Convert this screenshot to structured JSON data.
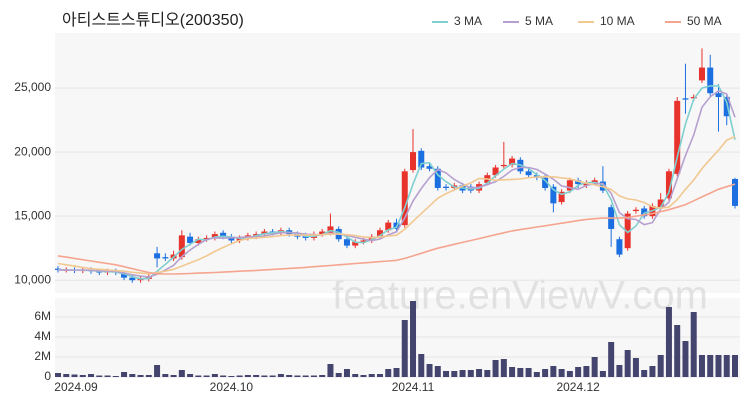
{
  "chart_data": {
    "type": "candlestick",
    "title": "아티스트스튜디오(200350)",
    "watermark": "feature.enViewV.com",
    "categories": [
      "2024.09",
      null,
      null,
      null,
      null,
      null,
      null,
      null,
      null,
      null,
      null,
      null,
      null,
      null,
      null,
      null,
      null,
      null,
      null,
      null,
      null,
      "2024.10",
      null,
      null,
      null,
      null,
      null,
      null,
      null,
      null,
      null,
      null,
      null,
      null,
      null,
      null,
      null,
      null,
      null,
      null,
      null,
      null,
      null,
      "2024.11",
      null,
      null,
      null,
      null,
      null,
      null,
      null,
      null,
      null,
      null,
      null,
      null,
      null,
      null,
      null,
      null,
      null,
      null,
      null,
      "2024.12",
      null,
      null,
      null,
      null,
      null,
      null,
      null,
      null,
      null,
      null,
      null,
      null,
      null,
      null,
      null,
      null,
      null,
      null,
      null
    ],
    "open": [
      10900,
      10800,
      10800,
      10750,
      10800,
      10700,
      10600,
      10700,
      10500,
      10200,
      10000,
      10100,
      12100,
      11800,
      11700,
      11800,
      13400,
      12900,
      13200,
      13300,
      13700,
      13400,
      13100,
      13300,
      13400,
      13600,
      13800,
      13700,
      13900,
      13600,
      13500,
      13300,
      13600,
      13700,
      14000,
      13200,
      12700,
      13000,
      13100,
      13400,
      13900,
      14500,
      14300,
      18600,
      20100,
      18900,
      18700,
      17300,
      17200,
      17400,
      17300,
      17000,
      17600,
      18200,
      18900,
      19000,
      19400,
      18500,
      18200,
      18000,
      17300,
      16100,
      17000,
      17800,
      17400,
      17600,
      17700,
      15700,
      13200,
      12500,
      15400,
      15600,
      15000,
      15700,
      16400,
      18300,
      24200,
      24200,
      25600,
      26600,
      24600,
      24300,
      17900
    ],
    "high": [
      11100,
      11000,
      11000,
      11000,
      11000,
      10900,
      10900,
      10900,
      10700,
      10400,
      10300,
      10500,
      12600,
      12100,
      12300,
      13900,
      13700,
      13400,
      13500,
      13800,
      13900,
      13600,
      13500,
      13700,
      13800,
      14000,
      14000,
      14100,
      14100,
      13800,
      13700,
      13800,
      14000,
      15200,
      14200,
      13400,
      13200,
      13300,
      13600,
      14100,
      14700,
      14800,
      18700,
      21800,
      20300,
      19100,
      18900,
      17500,
      17600,
      17600,
      17500,
      17700,
      18400,
      19000,
      20800,
      19700,
      19600,
      18700,
      18400,
      18200,
      17500,
      17100,
      18000,
      18000,
      17800,
      18000,
      18900,
      15900,
      13400,
      15400,
      15700,
      15800,
      16000,
      16800,
      18700,
      24300,
      26900,
      24500,
      28100,
      27600,
      25300,
      24500,
      18000
    ],
    "low": [
      10600,
      10600,
      10550,
      10550,
      10500,
      10400,
      10400,
      10400,
      10000,
      9800,
      9800,
      9900,
      11000,
      11500,
      11500,
      11600,
      12700,
      12700,
      13000,
      13100,
      13200,
      12900,
      12900,
      13100,
      13200,
      13400,
      13500,
      13500,
      13400,
      13200,
      13100,
      13100,
      13400,
      13500,
      13000,
      12500,
      12500,
      12800,
      12900,
      13200,
      13700,
      13800,
      14100,
      18400,
      18600,
      18500,
      17000,
      17000,
      17000,
      16800,
      16800,
      16800,
      17400,
      18000,
      18700,
      18800,
      18300,
      18000,
      17800,
      17000,
      15300,
      15900,
      16800,
      17200,
      17200,
      17400,
      16800,
      12600,
      11800,
      12300,
      15200,
      14800,
      14800,
      15500,
      16200,
      18100,
      23000,
      24000,
      25400,
      24400,
      21600,
      22100,
      15600
    ],
    "close": [
      10800,
      10800,
      10750,
      10800,
      10700,
      10600,
      10700,
      10600,
      10200,
      10000,
      10100,
      10300,
      11700,
      11700,
      12000,
      13500,
      12900,
      13200,
      13300,
      13600,
      13400,
      13100,
      13300,
      13500,
      13600,
      13800,
      13700,
      13900,
      13600,
      13400,
      13300,
      13600,
      13800,
      14200,
      13200,
      12700,
      13000,
      13100,
      13400,
      13900,
      14500,
      14000,
      18500,
      20000,
      18800,
      18700,
      17200,
      17200,
      17400,
      17000,
      17000,
      17500,
      18200,
      18800,
      19000,
      19500,
      18500,
      18200,
      18000,
      17200,
      16000,
      16900,
      17800,
      17500,
      17600,
      17800,
      17000,
      14000,
      12000,
      15200,
      15500,
      15000,
      15800,
      16300,
      18500,
      24000,
      24100,
      24300,
      26600,
      24600,
      24300,
      22800,
      15800
    ],
    "up_color": "#e8322c",
    "down_color": "#1b6fe0",
    "series": [
      {
        "name": "3 MA",
        "color": "#7fcfd0",
        "values": [
          10800,
          10800,
          10780,
          10780,
          10750,
          10700,
          10670,
          10630,
          10500,
          10270,
          10100,
          10130,
          10700,
          11230,
          11800,
          12400,
          12800,
          13200,
          13130,
          13370,
          13430,
          13370,
          13270,
          13300,
          13470,
          13630,
          13700,
          13800,
          13730,
          13630,
          13430,
          13430,
          13570,
          13870,
          13730,
          13370,
          12970,
          12930,
          13170,
          13470,
          13930,
          14130,
          15670,
          17500,
          19100,
          19170,
          18230,
          17700,
          17270,
          17200,
          17130,
          17170,
          17570,
          18170,
          18670,
          19100,
          19000,
          18730,
          18230,
          17800,
          17070,
          16700,
          16900,
          17400,
          17630,
          17630,
          17470,
          16270,
          14330,
          13730,
          14230,
          15230,
          15430,
          15700,
          16870,
          19600,
          22200,
          24130,
          25000,
          25170,
          25170,
          23900,
          20970
        ]
      },
      {
        "name": "5 MA",
        "color": "#b6a0cf",
        "values": [
          10800,
          10800,
          10780,
          10790,
          10770,
          10730,
          10710,
          10680,
          10560,
          10420,
          10320,
          10240,
          10460,
          10800,
          11160,
          11840,
          12360,
          12800,
          13180,
          13300,
          13280,
          13320,
          13340,
          13380,
          13380,
          13460,
          13580,
          13700,
          13720,
          13680,
          13580,
          13560,
          13540,
          13660,
          13620,
          13500,
          13340,
          13200,
          13080,
          13220,
          13540,
          13780,
          14860,
          16180,
          17160,
          18000,
          18640,
          18380,
          17860,
          17500,
          17200,
          17260,
          17460,
          17700,
          18100,
          18600,
          18800,
          18800,
          18640,
          18280,
          17880,
          17360,
          17220,
          17100,
          17400,
          17520,
          17540,
          16780,
          15280,
          14800,
          14740,
          14340,
          14500,
          15560,
          16100,
          17920,
          19740,
          21340,
          23500,
          24320,
          24780,
          24540,
          22720
        ]
      },
      {
        "name": "10 MA",
        "color": "#f2c891",
        "values": [
          11300,
          11200,
          11100,
          11000,
          10900,
          10850,
          10800,
          10750,
          10700,
          10620,
          10550,
          10500,
          10600,
          10700,
          10850,
          11100,
          11350,
          11600,
          11900,
          12250,
          12550,
          12850,
          13100,
          13250,
          13300,
          13350,
          13400,
          13480,
          13520,
          13530,
          13520,
          13530,
          13550,
          13600,
          13600,
          13550,
          13480,
          13380,
          13320,
          13380,
          13460,
          13510,
          13980,
          14600,
          15200,
          15800,
          16400,
          16750,
          17050,
          17350,
          17600,
          17950,
          17900,
          17810,
          17840,
          17870,
          17900,
          18000,
          18060,
          18080,
          18070,
          17990,
          17920,
          17730,
          17580,
          17440,
          17290,
          17080,
          16580,
          16350,
          16260,
          16060,
          15740,
          15620,
          15710,
          16290,
          17100,
          17820,
          18710,
          19450,
          20150,
          20930,
          21220
        ]
      },
      {
        "name": "50 MA",
        "color": "#f5a58f",
        "values": [
          11900,
          11800,
          11700,
          11600,
          11500,
          11400,
          11300,
          11200,
          11050,
          10900,
          10750,
          10600,
          10500,
          10480,
          10480,
          10500,
          10520,
          10550,
          10580,
          10600,
          10630,
          10660,
          10700,
          10730,
          10760,
          10800,
          10840,
          10880,
          10920,
          10960,
          11000,
          11050,
          11100,
          11150,
          11200,
          11250,
          11300,
          11350,
          11400,
          11450,
          11500,
          11550,
          11700,
          11900,
          12100,
          12300,
          12500,
          12650,
          12800,
          12950,
          13100,
          13250,
          13400,
          13550,
          13700,
          13850,
          13950,
          14050,
          14150,
          14250,
          14350,
          14450,
          14550,
          14650,
          14750,
          14800,
          14850,
          14850,
          14850,
          14900,
          15000,
          15100,
          15200,
          15350,
          15500,
          15700,
          15900,
          16200,
          16500,
          16800,
          17100,
          17300,
          17500
        ]
      }
    ],
    "ylim": [
      9000,
      29300
    ],
    "yticks": [
      {
        "value": 10000,
        "label": "10,000"
      },
      {
        "value": 15000,
        "label": "15,000"
      },
      {
        "value": 20000,
        "label": "20,000"
      },
      {
        "value": 25000,
        "label": "25,000"
      }
    ],
    "grid": true,
    "volume": {
      "color": "#44456e",
      "values": [
        400000,
        300000,
        250000,
        200000,
        300000,
        150000,
        150000,
        100000,
        500000,
        300000,
        200000,
        200000,
        1200000,
        300000,
        200000,
        700000,
        300000,
        150000,
        150000,
        300000,
        150000,
        100000,
        150000,
        200000,
        200000,
        150000,
        150000,
        300000,
        200000,
        150000,
        150000,
        150000,
        200000,
        1300000,
        400000,
        800000,
        300000,
        200000,
        300000,
        300000,
        800000,
        900000,
        5700000,
        7600000,
        2300000,
        1300000,
        1100000,
        600000,
        600000,
        700000,
        700000,
        800000,
        700000,
        1700000,
        1800000,
        1000000,
        900000,
        900000,
        500000,
        800000,
        1100000,
        800000,
        600000,
        1000000,
        1100000,
        2000000,
        600000,
        3500000,
        1200000,
        2700000,
        1900000,
        700000,
        1100000,
        2200000,
        7000000,
        5200000,
        3600000,
        6500000,
        2200000,
        2200000,
        2200000,
        2200000,
        2200000
      ],
      "ylim": [
        0,
        7900000
      ],
      "yticks": [
        0,
        {
          "value": 2000000,
          "label": "2M"
        },
        {
          "value": 4000000,
          "label": "4M"
        },
        {
          "value": 6000000,
          "label": "6M"
        }
      ]
    }
  }
}
